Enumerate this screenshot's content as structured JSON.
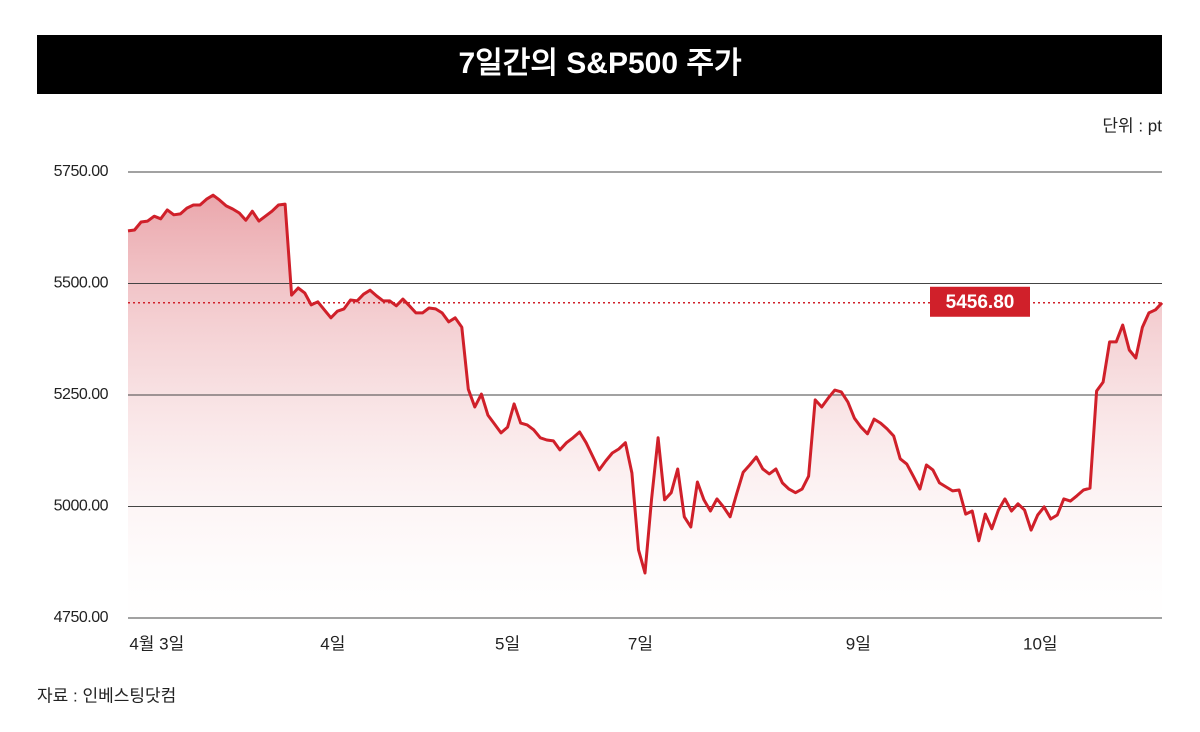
{
  "chart_data": {
    "type": "line",
    "title": "7일간의 S&P500 주가",
    "unit": "단위 : pt",
    "source": "자료 : 인베스팅닷컴",
    "color": "#d0202a",
    "grid": true,
    "ylim": [
      4750,
      5750
    ],
    "yticks": [
      {
        "value": 4750,
        "label": "4750.00"
      },
      {
        "value": 5000,
        "label": "5000.00"
      },
      {
        "value": 5250,
        "label": "5250.00"
      },
      {
        "value": 5500,
        "label": "5500.00"
      },
      {
        "value": 5750,
        "label": "5750.00"
      }
    ],
    "xlim": [
      0,
      158
    ],
    "xticks": [
      {
        "value": 4.4,
        "label": "4월 3일"
      },
      {
        "value": 31.3,
        "label": "4일"
      },
      {
        "value": 58,
        "label": "5일"
      },
      {
        "value": 78.3,
        "label": "7일"
      },
      {
        "value": 111.6,
        "label": "9일"
      },
      {
        "value": 139.4,
        "label": "10일"
      }
    ],
    "values": [
      5618,
      5620,
      5638,
      5640,
      5651,
      5645,
      5665,
      5654,
      5656,
      5669,
      5676,
      5676,
      5689,
      5698,
      5687,
      5674,
      5667,
      5658,
      5642,
      5662,
      5640,
      5651,
      5662,
      5676,
      5678,
      5474,
      5490,
      5479,
      5452,
      5459,
      5441,
      5423,
      5438,
      5443,
      5463,
      5461,
      5476,
      5485,
      5472,
      5461,
      5461,
      5450,
      5465,
      5450,
      5434,
      5434,
      5445,
      5443,
      5434,
      5414,
      5423,
      5402,
      5263,
      5223,
      5252,
      5205,
      5185,
      5165,
      5178,
      5230,
      5187,
      5183,
      5172,
      5154,
      5149,
      5147,
      5127,
      5143,
      5154,
      5167,
      5143,
      5113,
      5082,
      5102,
      5120,
      5129,
      5143,
      5075,
      4903,
      4851,
      5015,
      5154,
      5015,
      5031,
      5084,
      4977,
      4954,
      5055,
      5015,
      4990,
      5017,
      4999,
      4977,
      5028,
      5077,
      5093,
      5111,
      5084,
      5073,
      5084,
      5053,
      5039,
      5031,
      5039,
      5068,
      5239,
      5223,
      5243,
      5261,
      5257,
      5234,
      5198,
      5178,
      5163,
      5196,
      5187,
      5174,
      5158,
      5107,
      5095,
      5068,
      5039,
      5093,
      5082,
      5053,
      5044,
      5035,
      5037,
      4983,
      4990,
      4923,
      4983,
      4950,
      4992,
      5017,
      4990,
      5006,
      4992,
      4947,
      4981,
      4999,
      4972,
      4981,
      5017,
      5012,
      5024,
      5037,
      5041,
      5259,
      5279,
      5369,
      5369,
      5407,
      5351,
      5333,
      5402,
      5434,
      5441,
      5456.8
    ],
    "annotation": {
      "value": 5456.8,
      "label": "5456.80"
    }
  }
}
